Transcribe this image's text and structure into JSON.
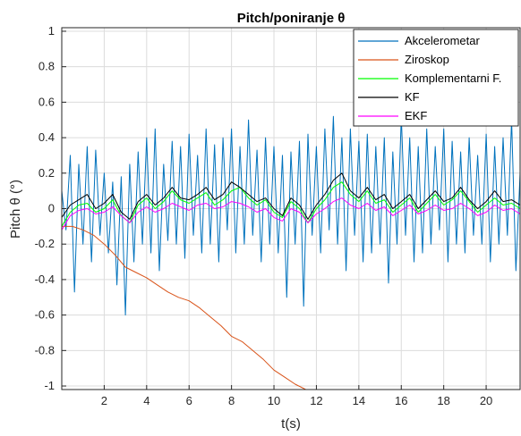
{
  "chart_data": {
    "type": "line",
    "title": "Pitch/poniranje θ",
    "xlabel": "t(s)",
    "ylabel": "Pitch θ (°)",
    "xlim": [
      0,
      21.6
    ],
    "ylim": [
      -1.02,
      1.02
    ],
    "xticks": [
      "2",
      "4",
      "6",
      "8",
      "10",
      "12",
      "14",
      "16",
      "18",
      "20"
    ],
    "xtick_values": [
      2,
      4,
      6,
      8,
      10,
      12,
      14,
      16,
      18,
      20
    ],
    "yticks": [
      "1",
      "0.8",
      "0.6",
      "0.4",
      "0.2",
      "0",
      "-0.2",
      "-0.4",
      "-0.6",
      "-0.8",
      "-1"
    ],
    "ytick_values": [
      1,
      0.8,
      0.6,
      0.4,
      0.2,
      0,
      -0.2,
      -0.4,
      -0.6,
      -0.8,
      -1
    ],
    "grid": true,
    "legend_position": "top-right",
    "series": [
      {
        "name": "Akcelerometar",
        "color": "#0072BD",
        "x": [
          0,
          0.2,
          0.4,
          0.6,
          0.8,
          1,
          1.2,
          1.4,
          1.6,
          1.8,
          2,
          2.2,
          2.4,
          2.6,
          2.8,
          3,
          3.2,
          3.4,
          3.6,
          3.8,
          4,
          4.2,
          4.4,
          4.6,
          4.8,
          5,
          5.2,
          5.4,
          5.6,
          5.8,
          6,
          6.2,
          6.4,
          6.6,
          6.8,
          7,
          7.2,
          7.4,
          7.6,
          7.8,
          8,
          8.2,
          8.4,
          8.6,
          8.8,
          9,
          9.2,
          9.4,
          9.6,
          9.8,
          10,
          10.2,
          10.4,
          10.6,
          10.8,
          11,
          11.2,
          11.4,
          11.6,
          11.8,
          12,
          12.2,
          12.4,
          12.6,
          12.8,
          13,
          13.2,
          13.4,
          13.6,
          13.8,
          14,
          14.2,
          14.4,
          14.6,
          14.8,
          15,
          15.2,
          15.4,
          15.6,
          15.8,
          16,
          16.2,
          16.4,
          16.6,
          16.8,
          17,
          17.2,
          17.4,
          17.6,
          17.8,
          18,
          18.2,
          18.4,
          18.6,
          18.8,
          19,
          19.2,
          19.4,
          19.6,
          19.8,
          20,
          20.2,
          20.4,
          20.6,
          20.8,
          21,
          21.2,
          21.4,
          21.6
        ],
        "y": [
          0.1,
          -0.12,
          0.3,
          -0.47,
          0.25,
          -0.2,
          0.35,
          -0.3,
          0.33,
          -0.15,
          0.2,
          -0.25,
          0.15,
          -0.43,
          0.18,
          -0.6,
          0.25,
          -0.3,
          0.32,
          -0.2,
          0.4,
          -0.25,
          0.45,
          -0.35,
          0.25,
          -0.18,
          0.38,
          -0.2,
          0.35,
          -0.28,
          0.42,
          -0.15,
          0.3,
          -0.25,
          0.45,
          -0.2,
          0.36,
          -0.3,
          0.4,
          -0.12,
          0.45,
          -0.25,
          0.35,
          -0.2,
          0.5,
          -0.15,
          0.33,
          -0.3,
          0.4,
          -0.2,
          0.35,
          -0.25,
          0.3,
          -0.5,
          0.32,
          -0.2,
          0.38,
          -0.55,
          0.42,
          -0.15,
          0.35,
          -0.25,
          0.45,
          -0.12,
          0.52,
          -0.2,
          0.4,
          -0.35,
          0.45,
          -0.15,
          0.38,
          -0.3,
          0.42,
          -0.25,
          0.35,
          -0.2,
          0.4,
          -0.42,
          0.32,
          -0.2,
          0.52,
          -0.15,
          0.4,
          -0.3,
          0.35,
          -0.25,
          0.45,
          -0.2,
          0.35,
          -0.12,
          0.45,
          -0.3,
          0.38,
          -0.2,
          0.32,
          -0.25,
          0.4,
          -0.15,
          0.3,
          -0.2,
          0.42,
          -0.3,
          0.35,
          -0.2,
          0.4,
          -0.15,
          0.5,
          -0.35,
          0.2
        ]
      },
      {
        "name": "Ziroskop",
        "color": "#D95319",
        "x": [
          0,
          0.5,
          1,
          1.5,
          2,
          2.5,
          3,
          3.5,
          4,
          4.5,
          5,
          5.5,
          6,
          6.5,
          7,
          7.5,
          8,
          8.5,
          9,
          9.5,
          10,
          10.5,
          11,
          11.5
        ],
        "y": [
          -0.1,
          -0.1,
          -0.12,
          -0.15,
          -0.2,
          -0.26,
          -0.33,
          -0.36,
          -0.39,
          -0.43,
          -0.47,
          -0.5,
          -0.52,
          -0.56,
          -0.61,
          -0.66,
          -0.72,
          -0.75,
          -0.8,
          -0.85,
          -0.91,
          -0.95,
          -0.99,
          -1.02
        ]
      },
      {
        "name": "Komplementarni F.",
        "color": "#00FF00",
        "x": [
          0,
          0.4,
          0.8,
          1.2,
          1.6,
          2,
          2.4,
          2.8,
          3.2,
          3.6,
          4,
          4.4,
          4.8,
          5.2,
          5.6,
          6,
          6.4,
          6.8,
          7.2,
          7.6,
          8,
          8.4,
          8.8,
          9.2,
          9.6,
          10,
          10.4,
          10.8,
          11.2,
          11.6,
          12,
          12.4,
          12.8,
          13.2,
          13.6,
          14,
          14.4,
          14.8,
          15.2,
          15.6,
          16,
          16.4,
          16.8,
          17.2,
          17.6,
          18,
          18.4,
          18.8,
          19.2,
          19.6,
          20,
          20.4,
          20.8,
          21.2,
          21.6
        ],
        "y": [
          -0.1,
          -0.02,
          0.02,
          0.03,
          -0.02,
          0,
          0.05,
          -0.04,
          -0.08,
          0.02,
          0.06,
          0,
          0.04,
          0.1,
          0.05,
          0.03,
          0.06,
          0.09,
          0.02,
          0.05,
          0.1,
          0.12,
          0.06,
          0.02,
          0.05,
          -0.02,
          -0.05,
          0.04,
          0,
          -0.08,
          0,
          0.05,
          0.12,
          0.15,
          0.08,
          0.04,
          0.1,
          0.03,
          0.05,
          -0.02,
          0.02,
          0.06,
          -0.02,
          0.03,
          0.08,
          0.02,
          0.05,
          0.1,
          0.04,
          -0.02,
          0.02,
          0.06,
          0.02,
          0.03,
          0
        ]
      },
      {
        "name": "KF",
        "color": "#000000",
        "x": [
          0,
          0.4,
          0.8,
          1.2,
          1.6,
          2,
          2.4,
          2.8,
          3.2,
          3.6,
          4,
          4.4,
          4.8,
          5.2,
          5.6,
          6,
          6.4,
          6.8,
          7.2,
          7.6,
          8,
          8.4,
          8.8,
          9.2,
          9.6,
          10,
          10.4,
          10.8,
          11.2,
          11.6,
          12,
          12.4,
          12.8,
          13.2,
          13.6,
          14,
          14.4,
          14.8,
          15.2,
          15.6,
          16,
          16.4,
          16.8,
          17.2,
          17.6,
          18,
          18.4,
          18.8,
          19.2,
          19.6,
          20,
          20.4,
          20.8,
          21.2,
          21.6
        ],
        "y": [
          -0.05,
          0.02,
          0.05,
          0.08,
          0,
          0.03,
          0.08,
          -0.02,
          -0.06,
          0.04,
          0.08,
          0.02,
          0.06,
          0.12,
          0.06,
          0.05,
          0.08,
          0.12,
          0.05,
          0.08,
          0.15,
          0.12,
          0.08,
          0.04,
          0.06,
          0,
          -0.04,
          0.06,
          0.02,
          -0.06,
          0.02,
          0.08,
          0.16,
          0.2,
          0.1,
          0.06,
          0.12,
          0.05,
          0.08,
          0,
          0.04,
          0.08,
          0,
          0.05,
          0.1,
          0.04,
          0.06,
          0.12,
          0.05,
          0,
          0.04,
          0.1,
          0.04,
          0.05,
          0.02
        ]
      },
      {
        "name": "EKF",
        "color": "#FF00FF",
        "x": [
          0,
          0.4,
          0.8,
          1.2,
          1.6,
          2,
          2.4,
          2.8,
          3.2,
          3.6,
          4,
          4.4,
          4.8,
          5.2,
          5.6,
          6,
          6.4,
          6.8,
          7.2,
          7.6,
          8,
          8.4,
          8.8,
          9.2,
          9.6,
          10,
          10.4,
          10.8,
          11.2,
          11.6,
          12,
          12.4,
          12.8,
          13.2,
          13.6,
          14,
          14.4,
          14.8,
          15.2,
          15.6,
          16,
          16.4,
          16.8,
          17.2,
          17.6,
          18,
          18.4,
          18.8,
          19.2,
          19.6,
          20,
          20.4,
          20.8,
          21.2,
          21.6
        ],
        "y": [
          -0.12,
          -0.04,
          -0.01,
          0,
          -0.03,
          -0.02,
          0.01,
          -0.04,
          -0.08,
          -0.02,
          0.01,
          -0.02,
          0,
          0.03,
          0.01,
          -0.01,
          0.02,
          0.03,
          0,
          0.01,
          0.04,
          0.03,
          0.01,
          -0.02,
          0,
          -0.05,
          -0.07,
          0,
          -0.02,
          -0.08,
          -0.03,
          0,
          0.04,
          0.06,
          0.02,
          0,
          0.03,
          -0.01,
          0.01,
          -0.04,
          -0.01,
          0.02,
          -0.03,
          -0.01,
          0.02,
          -0.01,
          0,
          0.03,
          0,
          -0.04,
          -0.02,
          0.02,
          -0.01,
          0,
          -0.03
        ]
      }
    ]
  }
}
